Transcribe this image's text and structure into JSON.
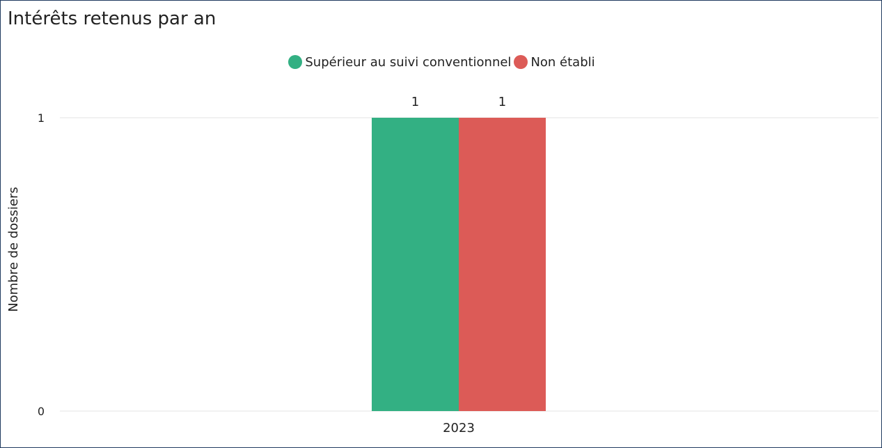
{
  "chart_data": {
    "type": "bar",
    "title": "Intérêts retenus par an",
    "xlabel": "",
    "ylabel": "Nombre de dossiers",
    "categories": [
      "2023"
    ],
    "series": [
      {
        "name": "Supérieur au suivi conventionnel",
        "values": [
          1
        ],
        "color": "#33b083"
      },
      {
        "name": "Non établi",
        "values": [
          1
        ],
        "color": "#dc5b57"
      }
    ],
    "yticks": [
      0,
      1
    ],
    "ylim": [
      0,
      1
    ],
    "grid": true,
    "legend": "top-center",
    "data_labels": true
  }
}
